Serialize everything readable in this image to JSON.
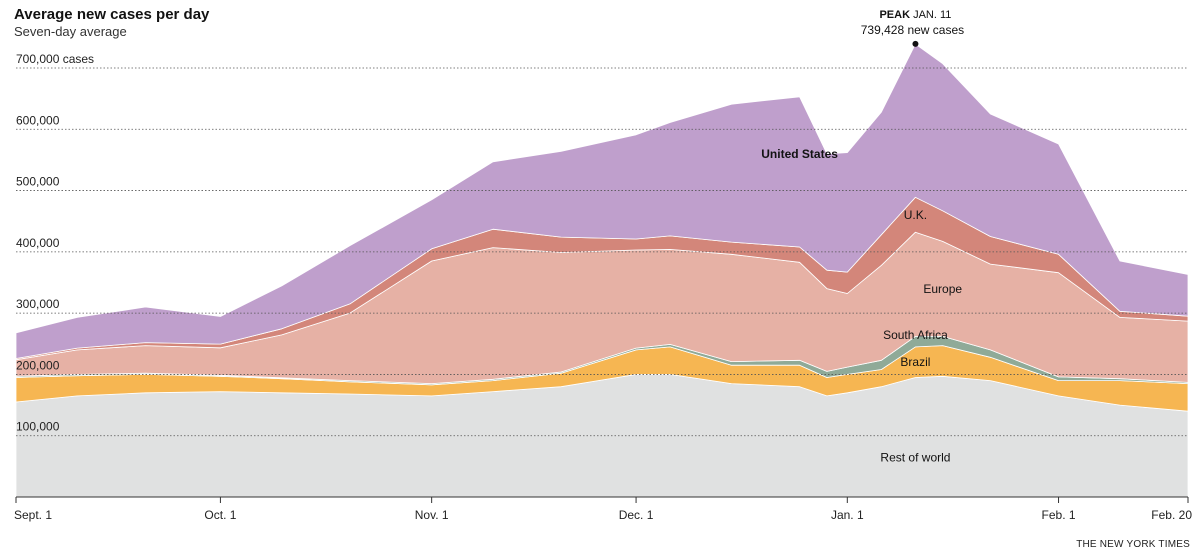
{
  "chart_data": {
    "type": "area",
    "stacked": true,
    "title": "Average new cases per day",
    "subtitle": "Seven-day average",
    "y_unit_label": "cases",
    "ylim": [
      0,
      700000
    ],
    "y_ticks": [
      100000,
      200000,
      300000,
      400000,
      500000,
      600000,
      700000
    ],
    "y_tick_labels": [
      "100,000",
      "200,000",
      "300,000",
      "400,000",
      "500,000",
      "600,000",
      "700,000"
    ],
    "grid": true,
    "x_ticks": [
      {
        "label": "Sept. 1",
        "date": "2020-09-01"
      },
      {
        "label": "Oct. 1",
        "date": "2020-10-01"
      },
      {
        "label": "Nov. 1",
        "date": "2020-11-01"
      },
      {
        "label": "Dec. 1",
        "date": "2020-12-01"
      },
      {
        "label": "Jan. 1",
        "date": "2021-01-01"
      },
      {
        "label": "Feb. 1",
        "date": "2021-02-01"
      },
      {
        "label": "Feb. 20",
        "date": "2021-02-20"
      }
    ],
    "x": [
      "2020-09-01",
      "2020-09-10",
      "2020-09-20",
      "2020-10-01",
      "2020-10-10",
      "2020-10-20",
      "2020-11-01",
      "2020-11-10",
      "2020-11-20",
      "2020-12-01",
      "2020-12-06",
      "2020-12-15",
      "2020-12-25",
      "2020-12-29",
      "2021-01-01",
      "2021-01-06",
      "2021-01-11",
      "2021-01-15",
      "2021-01-22",
      "2021-02-01",
      "2021-02-10",
      "2021-02-20"
    ],
    "series": [
      {
        "name": "Rest of world",
        "color": "#e0e1e1",
        "values": [
          155000,
          165000,
          170000,
          172000,
          170000,
          168000,
          165000,
          172000,
          180000,
          200000,
          200000,
          185000,
          180000,
          165000,
          170000,
          180000,
          195000,
          197000,
          190000,
          165000,
          150000,
          140000
        ]
      },
      {
        "name": "Brazil",
        "color": "#f6b652",
        "values": [
          40000,
          33000,
          30000,
          25000,
          23000,
          20000,
          18000,
          18000,
          22000,
          40000,
          45000,
          30000,
          35000,
          30000,
          30000,
          28000,
          50000,
          50000,
          38000,
          25000,
          40000,
          45000
        ]
      },
      {
        "name": "South Africa",
        "color": "#8faa98",
        "values": [
          2000,
          2000,
          2000,
          1500,
          1500,
          2000,
          2000,
          2000,
          2000,
          3000,
          4000,
          6000,
          8000,
          10000,
          12000,
          15000,
          17000,
          15000,
          12000,
          6000,
          3000,
          2000
        ]
      },
      {
        "name": "Europe",
        "color": "#e6b1a5",
        "values": [
          27000,
          40000,
          45000,
          45000,
          70000,
          110000,
          200000,
          215000,
          195000,
          160000,
          155000,
          175000,
          160000,
          135000,
          120000,
          155000,
          170000,
          155000,
          140000,
          170000,
          100000,
          100000
        ]
      },
      {
        "name": "U.K.",
        "color": "#d3867a",
        "values": [
          2000,
          3000,
          5000,
          6000,
          10000,
          15000,
          20000,
          30000,
          25000,
          18000,
          22000,
          20000,
          25000,
          30000,
          35000,
          50000,
          57000,
          50000,
          45000,
          30000,
          10000,
          8000
        ]
      },
      {
        "name": "United States",
        "color": "#bf9fcc",
        "values": [
          42000,
          50000,
          58000,
          45000,
          70000,
          95000,
          80000,
          110000,
          140000,
          170000,
          185000,
          225000,
          245000,
          190000,
          195000,
          200000,
          250000,
          240000,
          200000,
          180000,
          82000,
          68000
        ]
      }
    ],
    "annotation": {
      "bold": "PEAK",
      "date": "JAN. 11",
      "value_text": "739,428 new cases",
      "x": "2021-01-11",
      "y": 739428
    },
    "source": "THE NEW YORK TIMES"
  }
}
